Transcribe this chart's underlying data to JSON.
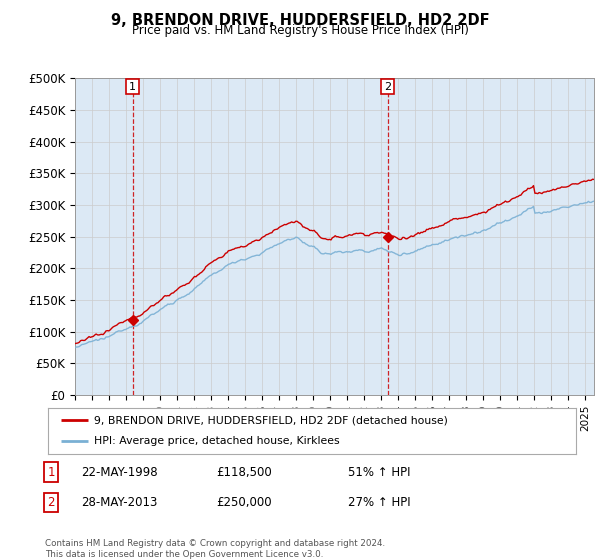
{
  "title": "9, BRENDON DRIVE, HUDDERSFIELD, HD2 2DF",
  "subtitle": "Price paid vs. HM Land Registry's House Price Index (HPI)",
  "ylabel_ticks": [
    "£0",
    "£50K",
    "£100K",
    "£150K",
    "£200K",
    "£250K",
    "£300K",
    "£350K",
    "£400K",
    "£450K",
    "£500K"
  ],
  "ytick_values": [
    0,
    50000,
    100000,
    150000,
    200000,
    250000,
    300000,
    350000,
    400000,
    450000,
    500000
  ],
  "ylim": [
    0,
    500000
  ],
  "xlim_start": 1995.0,
  "xlim_end": 2025.5,
  "transaction1_date": 1998.38,
  "transaction1_price": 118500,
  "transaction1_label": "1",
  "transaction2_date": 2013.38,
  "transaction2_price": 250000,
  "transaction2_label": "2",
  "legend_line1": "9, BRENDON DRIVE, HUDDERSFIELD, HD2 2DF (detached house)",
  "legend_line2": "HPI: Average price, detached house, Kirklees",
  "annotation1_date": "22-MAY-1998",
  "annotation1_price": "£118,500",
  "annotation1_hpi": "51% ↑ HPI",
  "annotation2_date": "28-MAY-2013",
  "annotation2_price": "£250,000",
  "annotation2_hpi": "27% ↑ HPI",
  "footer": "Contains HM Land Registry data © Crown copyright and database right 2024.\nThis data is licensed under the Open Government Licence v3.0.",
  "color_red": "#cc0000",
  "color_blue": "#7ab0d4",
  "color_grid": "#cccccc",
  "color_vline": "#cc0000",
  "plot_bg": "#dce9f5",
  "background": "#ffffff"
}
